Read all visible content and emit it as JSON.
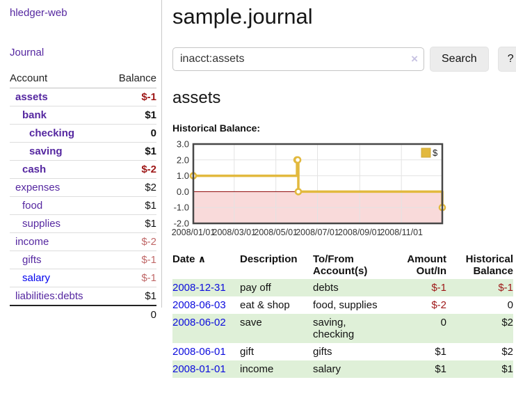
{
  "app": {
    "brand": "hledger-web"
  },
  "nav": {
    "journal": "Journal"
  },
  "sidebar": {
    "headers": [
      "Account",
      "Balance"
    ],
    "accounts": [
      {
        "name": "assets",
        "balance": "$-1"
      },
      {
        "name": "bank",
        "balance": "$1"
      },
      {
        "name": "checking",
        "balance": "0"
      },
      {
        "name": "saving",
        "balance": "$1"
      },
      {
        "name": "cash",
        "balance": "$-2"
      },
      {
        "name": "expenses",
        "balance": "$2"
      },
      {
        "name": "food",
        "balance": "$1"
      },
      {
        "name": "supplies",
        "balance": "$1"
      },
      {
        "name": "income",
        "balance": "$-2"
      },
      {
        "name": "gifts",
        "balance": "$-1"
      },
      {
        "name": "salary",
        "balance": "$-1"
      },
      {
        "name": "liabilities:debts",
        "balance": "$1"
      }
    ],
    "total": "0"
  },
  "main": {
    "title": "sample.journal",
    "search": {
      "value": "inacct:assets",
      "clear_icon": "×",
      "button_label": "Search",
      "help_label": "?"
    },
    "account_heading": "assets"
  },
  "chart_data": {
    "type": "line",
    "title": "Historical Balance:",
    "step": true,
    "x_range": [
      "2008-01-01",
      "2008-12-31"
    ],
    "ylim": [
      -2,
      3
    ],
    "yticks": [
      3.0,
      2.0,
      1.0,
      0.0,
      -1.0,
      -2.0
    ],
    "ytick_labels": [
      "3.0",
      "2.0",
      "1.0",
      "0.0",
      "-1.0",
      "-2.0"
    ],
    "xticks": [
      {
        "date": "2008-01-01",
        "label": "2008/01/01"
      },
      {
        "date": "2008-03-01",
        "label": "2008/03/01"
      },
      {
        "date": "2008-05-01",
        "label": "2008/05/01"
      },
      {
        "date": "2008-07-01",
        "label": "2008/07/01"
      },
      {
        "date": "2008-09-01",
        "label": "2008/09/01"
      },
      {
        "date": "2008-11-01",
        "label": "2008/11/01"
      }
    ],
    "series": [
      {
        "name": "$",
        "color": "#e2b93e",
        "points": [
          [
            "2008-01-01",
            1
          ],
          [
            "2008-06-01",
            2
          ],
          [
            "2008-06-02",
            2
          ],
          [
            "2008-06-03",
            0
          ],
          [
            "2008-12-31",
            -1
          ]
        ]
      }
    ],
    "legend_position": "top-right",
    "grid": true,
    "negative_fill": "#f9dada",
    "zero_line_color": "#8b0000"
  },
  "register": {
    "headers": {
      "date": "Date",
      "sort_icon": "∧",
      "description": "Description",
      "tofrom": "To/From Account(s)",
      "amount": "Amount Out/In",
      "balance": "Historical Balance"
    },
    "rows": [
      {
        "date": "2008-12-31",
        "description": "pay off",
        "tofrom": "debts",
        "amount": "$-1",
        "balance": "$-1"
      },
      {
        "date": "2008-06-03",
        "description": "eat & shop",
        "tofrom": "food, supplies",
        "amount": "$-2",
        "balance": "0"
      },
      {
        "date": "2008-06-02",
        "description": "save",
        "tofrom": "saving, checking",
        "amount": "0",
        "balance": "$2"
      },
      {
        "date": "2008-06-01",
        "description": "gift",
        "tofrom": "gifts",
        "amount": "$1",
        "balance": "$2"
      },
      {
        "date": "2008-01-01",
        "description": "income",
        "tofrom": "salary",
        "amount": "$1",
        "balance": "$1"
      }
    ]
  },
  "colors": {
    "link_purple": "#5527a0",
    "link_blue": "#0000ee",
    "negative_dark_red": "#9e1717",
    "negative_muted_rose": "#c06868",
    "row_stripe_green": "#dff0d8",
    "chart_line_gold": "#e2b93e",
    "chart_negative_pink": "#f9dada"
  }
}
